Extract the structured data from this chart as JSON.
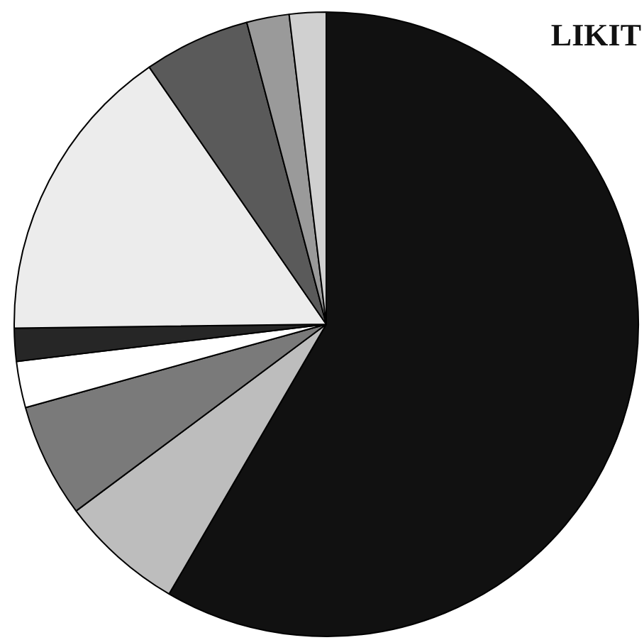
{
  "chart_data": {
    "type": "pie",
    "categories": [
      null,
      null,
      null,
      null,
      null,
      null,
      null,
      null,
      null
    ],
    "values": [
      58.4,
      6.4,
      5.9,
      2.4,
      1.7,
      15.6,
      5.5,
      2.2,
      1.9
    ],
    "colors": [
      "#111111",
      "#bdbdbd",
      "#7a7a7a",
      "#ffffff",
      "#262626",
      "#ececec",
      "#5a5a5a",
      "#9a9a9a",
      "#d0d0d0"
    ],
    "annotations": [
      "LIKIT"
    ],
    "legend": false
  }
}
